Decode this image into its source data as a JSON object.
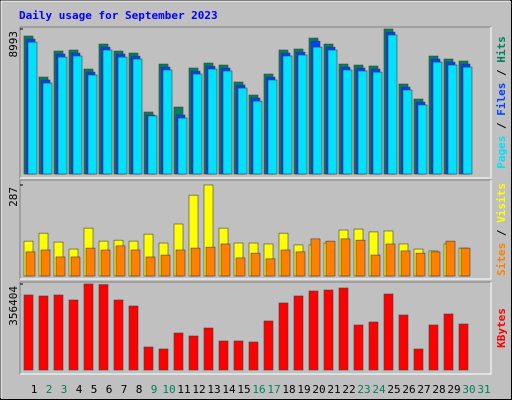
{
  "title": "Daily usage for September 2023",
  "legend_separator": " / ",
  "chart_data": [
    {
      "type": "bar",
      "ylim": [
        0,
        8993
      ],
      "yticks": [
        8993
      ],
      "series": [
        {
          "name": "Hits",
          "color": "#00805c",
          "values": [
            8556,
            6014,
            7626,
            7688,
            6510,
            8060,
            7626,
            7502,
            3844,
            6820,
            4154,
            6572,
            6882,
            6758,
            5704,
            4898,
            6200,
            7688,
            7750,
            8432,
            8060,
            6820,
            6758,
            6696,
            8993,
            5580,
            4650,
            7316,
            7130,
            7006,
            null
          ]
        },
        {
          "name": "Files",
          "color": "#0040ff",
          "values": [
            8370,
            5830,
            7440,
            7500,
            6320,
            7870,
            7440,
            7310,
            3660,
            6630,
            3660,
            6380,
            6690,
            6570,
            5520,
            4710,
            6010,
            7500,
            7560,
            8240,
            7870,
            6630,
            6570,
            6510,
            8800,
            5390,
            4460,
            7130,
            6940,
            6820,
            null
          ]
        },
        {
          "name": "Pages",
          "color": "#00e0ff",
          "values": [
            8180,
            5640,
            7250,
            7320,
            6140,
            7690,
            7250,
            7130,
            3600,
            6450,
            3470,
            6200,
            6510,
            6390,
            5330,
            4520,
            5830,
            7320,
            7380,
            7870,
            7690,
            6450,
            6390,
            6320,
            8620,
            5210,
            4280,
            6940,
            6760,
            6630,
            null
          ]
        }
      ]
    },
    {
      "type": "bar",
      "ylim": [
        0,
        287
      ],
      "yticks": [
        287
      ],
      "series": [
        {
          "name": "Visits",
          "color": "#ffff00",
          "values": [
            110,
            135,
            107,
            85,
            151,
            110,
            113,
            110,
            132,
            104,
            164,
            255,
            287,
            151,
            104,
            104,
            101,
            135,
            98,
            98,
            104,
            145,
            148,
            139,
            142,
            101,
            85,
            79,
            101,
            88,
            null
          ]
        },
        {
          "name": "Sites",
          "color": "#ff8000",
          "values": [
            76,
            82,
            60,
            60,
            88,
            82,
            95,
            82,
            60,
            66,
            82,
            88,
            91,
            101,
            57,
            72,
            54,
            82,
            76,
            117,
            110,
            117,
            113,
            66,
            101,
            79,
            72,
            76,
            110,
            88,
            null
          ]
        }
      ]
    },
    {
      "type": "bar",
      "ylim": [
        0,
        356404
      ],
      "yticks": [
        356404
      ],
      "categories": [
        "1",
        "2",
        "3",
        "4",
        "5",
        "6",
        "7",
        "8",
        "9",
        "10",
        "11",
        "12",
        "13",
        "14",
        "15",
        "16",
        "17",
        "18",
        "19",
        "20",
        "21",
        "22",
        "23",
        "24",
        "25",
        "26",
        "27",
        "28",
        "29",
        "30",
        "31"
      ],
      "category_colors": [
        "#000000",
        "#00805c",
        "#00805c",
        "#000000",
        "#000000",
        "#000000",
        "#000000",
        "#000000",
        "#00805c",
        "#00805c",
        "#000000",
        "#000000",
        "#000000",
        "#000000",
        "#000000",
        "#00805c",
        "#00805c",
        "#000000",
        "#000000",
        "#000000",
        "#000000",
        "#000000",
        "#00805c",
        "#00805c",
        "#000000",
        "#000000",
        "#000000",
        "#000000",
        "#000000",
        "#00805c",
        "#00805c"
      ],
      "series": [
        {
          "name": "KBytes",
          "color": "#ff0000",
          "values": [
            310800,
            306700,
            310800,
            290100,
            356404,
            354000,
            290100,
            265200,
            95300,
            87000,
            153300,
            140900,
            174000,
            120200,
            120200,
            116000,
            203100,
            277600,
            306700,
            327400,
            331500,
            339800,
            186500,
            198900,
            314900,
            227900,
            87000,
            186500,
            232100,
            190600,
            null
          ]
        }
      ]
    }
  ]
}
